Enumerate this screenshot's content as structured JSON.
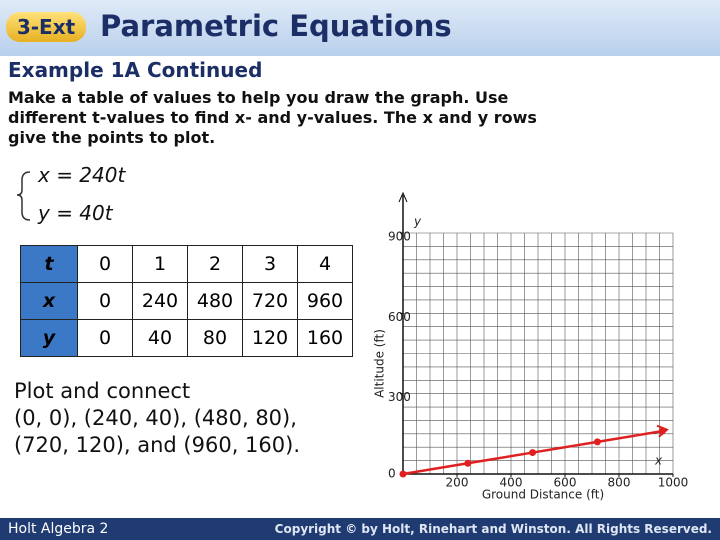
{
  "header": {
    "badge": "3-Ext",
    "title": "Parametric Equations",
    "subtitle": "Example 1A Continued"
  },
  "instructions": [
    "Make a table of values to help you draw the graph. Use",
    "different t-values to find x- and y-values. The x and y rows",
    "give the points to plot."
  ],
  "equations": [
    "x = 240t",
    "y = 40t"
  ],
  "table": {
    "rows": [
      [
        "t",
        "0",
        "1",
        "2",
        "3",
        "4"
      ],
      [
        "x",
        "0",
        "240",
        "480",
        "720",
        "960"
      ],
      [
        "y",
        "0",
        "40",
        "80",
        "120",
        "160"
      ]
    ]
  },
  "plot_text": [
    "Plot and connect",
    "(0, 0), (240, 40), (480, 80),",
    "(720, 120), and (960, 160)."
  ],
  "chart_data": {
    "type": "line",
    "x_label": "Ground Distance (ft)",
    "y_label": "Altitude (ft)",
    "x_axis_name": "x",
    "y_axis_name": "y",
    "x": [
      0,
      240,
      480,
      720,
      960
    ],
    "series": [
      {
        "color": "#e02020",
        "values": [
          0,
          40,
          80,
          120,
          160
        ]
      }
    ],
    "xlim": [
      0,
      1000
    ],
    "ylim": [
      0,
      900
    ],
    "xticks": [
      200,
      400,
      600,
      800,
      1000
    ],
    "yticks": [
      0,
      300,
      600,
      900
    ],
    "grid": true,
    "x_grid_step": 50,
    "y_grid_step": 50
  },
  "footer": {
    "left": "Holt Algebra 2",
    "right": "Copyright © by Holt, Rinehart and Winston. All Rights Reserved."
  }
}
